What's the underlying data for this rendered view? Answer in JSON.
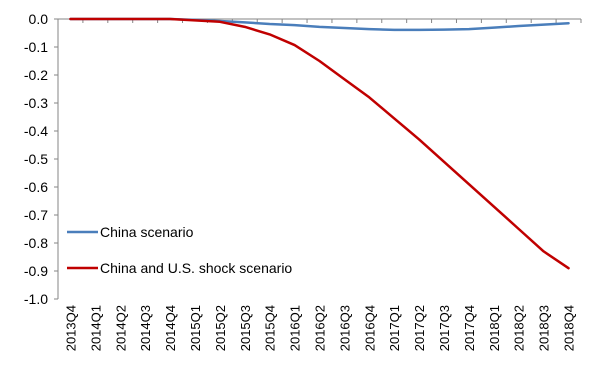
{
  "chart_data": {
    "type": "line",
    "title": "",
    "xlabel": "",
    "ylabel": "",
    "categories": [
      "2013Q4",
      "2014Q1",
      "2014Q2",
      "2014Q3",
      "2014Q4",
      "2015Q1",
      "2015Q2",
      "2015Q3",
      "2015Q4",
      "2016Q1",
      "2016Q2",
      "2016Q3",
      "2016Q4",
      "2017Q1",
      "2017Q2",
      "2017Q3",
      "2017Q4",
      "2018Q1",
      "2018Q2",
      "2018Q3",
      "2018Q4"
    ],
    "ylim": [
      -1.0,
      0.0
    ],
    "yticks": [
      "0.0",
      "-0.1",
      "-0.2",
      "-0.3",
      "-0.4",
      "-0.5",
      "-0.6",
      "-0.7",
      "-0.8",
      "-0.9",
      "-1.0"
    ],
    "grid": false,
    "legend_position": "lower-left",
    "series": [
      {
        "name": "China scenario",
        "color": "#4a7ebb",
        "values": [
          0.0,
          0.0,
          0.0,
          0.0,
          0.0,
          -0.003,
          -0.007,
          -0.012,
          -0.018,
          -0.022,
          -0.028,
          -0.032,
          -0.036,
          -0.039,
          -0.039,
          -0.038,
          -0.036,
          -0.031,
          -0.025,
          -0.02,
          -0.015
        ]
      },
      {
        "name": "China and U.S. shock scenario",
        "color": "#c00000",
        "values": [
          0.0,
          0.0,
          0.0,
          0.0,
          0.0,
          -0.005,
          -0.01,
          -0.028,
          -0.055,
          -0.093,
          -0.15,
          -0.215,
          -0.28,
          -0.355,
          -0.43,
          -0.51,
          -0.59,
          -0.67,
          -0.75,
          -0.83,
          -0.89
        ]
      }
    ]
  }
}
